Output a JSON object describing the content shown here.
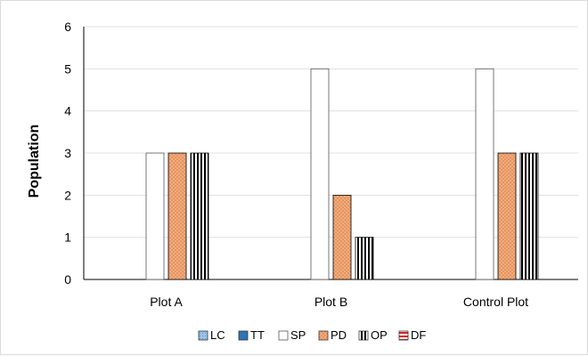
{
  "chart_data": {
    "type": "bar",
    "categories": [
      "Plot A",
      "Plot B",
      "Control Plot"
    ],
    "ylabel": "Population",
    "xlabel": "",
    "ylim": [
      0,
      6
    ],
    "yticks": [
      0,
      1,
      2,
      3,
      4,
      5,
      6
    ],
    "grid": true,
    "legend_position": "bottom",
    "series": [
      {
        "name": "LC",
        "values": [
          0,
          0,
          0
        ],
        "color": "#9dc3e6",
        "pattern": "dots"
      },
      {
        "name": "TT",
        "values": [
          0,
          0,
          0
        ],
        "color": "#2e75b6",
        "pattern": "solid"
      },
      {
        "name": "SP",
        "values": [
          3,
          5,
          5
        ],
        "color": "#ffffff",
        "pattern": "none"
      },
      {
        "name": "PD",
        "values": [
          3,
          2,
          3
        ],
        "color": "#f4b183",
        "pattern": "crosshatch"
      },
      {
        "name": "OP",
        "values": [
          3,
          1,
          3
        ],
        "color": "#000000",
        "pattern": "vertical-stripes"
      },
      {
        "name": "DF",
        "values": [
          0,
          0,
          0
        ],
        "color": "#e02020",
        "pattern": "horizontal-stripes"
      }
    ]
  }
}
